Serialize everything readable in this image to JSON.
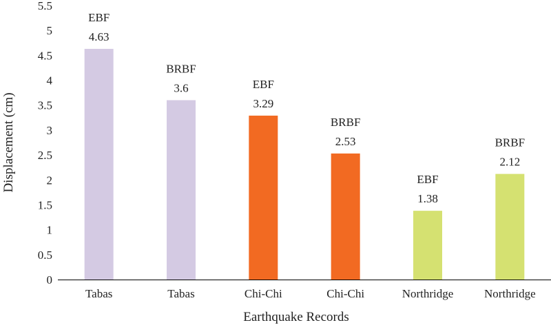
{
  "chart_data": {
    "type": "bar",
    "xlabel": "Earthquake Records",
    "ylabel": "Displacement (cm)",
    "ylim": [
      0,
      5.5
    ],
    "yticks": [
      "0",
      "0.5",
      "1",
      "1.5",
      "2",
      "2.5",
      "3",
      "3.5",
      "4",
      "4.5",
      "5",
      "5.5"
    ],
    "grid": false,
    "categories": [
      "Tabas",
      "Tabas",
      "Chi-Chi",
      "Chi-Chi",
      "Northridge",
      "Northridge"
    ],
    "values": [
      4.63,
      3.6,
      3.29,
      2.53,
      1.38,
      2.12
    ],
    "bar_names": [
      "EBF",
      "BRBF",
      "EBF",
      "BRBF",
      "EBF",
      "BRBF"
    ],
    "value_labels": [
      "4.63",
      "3.6",
      "3.29",
      "2.53",
      "1.38",
      "2.12"
    ],
    "colors": [
      "#d4cae3",
      "#d4cae3",
      "#f26a22",
      "#f26a22",
      "#d5e171",
      "#d5e171"
    ]
  }
}
